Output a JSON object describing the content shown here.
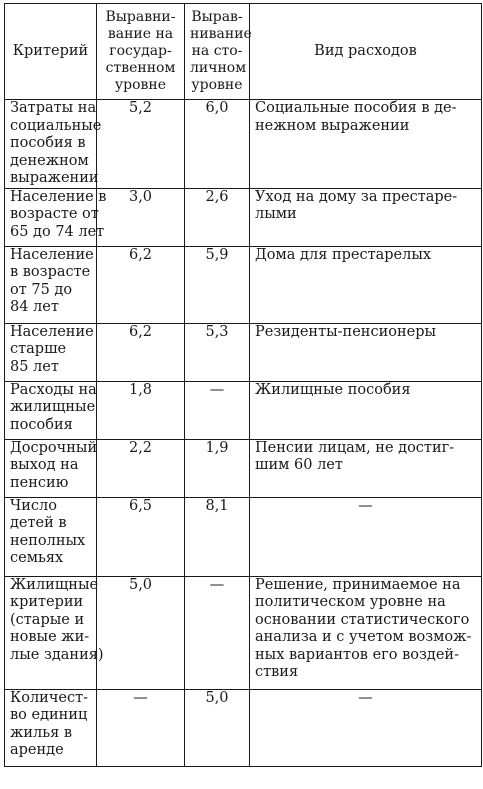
{
  "table": {
    "headers": {
      "criterion": "Критерий",
      "state_level": [
        "Выравни-",
        "вание на",
        "государ-",
        "ственном",
        "уровне"
      ],
      "capital_level": [
        "Вырав-",
        "нивание",
        "на сто-",
        "личном",
        "уровне"
      ],
      "expense_type": "Вид расходов"
    },
    "rows": [
      {
        "criterion": [
          "Затраты на",
          "социальные",
          "пособия в",
          "денежном",
          "выражении"
        ],
        "state": "5,2",
        "capital": "6,0",
        "expense": [
          "Социальные пособия в де-",
          "нежном выражении"
        ],
        "expense_centered": false,
        "height": 87
      },
      {
        "criterion": [
          "Население в",
          "возрасте от",
          "65 до 74 лет"
        ],
        "state": "3,0",
        "capital": "2,6",
        "expense": [
          "Уход на дому за престаре-",
          "лыми"
        ],
        "expense_centered": false,
        "height": 58
      },
      {
        "criterion": [
          "Население",
          "в возрасте",
          "от 75 до",
          "84 лет"
        ],
        "state": "6,2",
        "capital": "5,9",
        "expense": [
          "Дома для престарелых"
        ],
        "expense_centered": false,
        "height": 77
      },
      {
        "criterion": [
          "Население",
          "старше",
          "85 лет"
        ],
        "state": "6,2",
        "capital": "5,3",
        "expense": [
          "Резиденты-пенсионеры"
        ],
        "expense_centered": false,
        "height": 58
      },
      {
        "criterion": [
          "Расходы на",
          "жилищные",
          "пособия"
        ],
        "state": "1,8",
        "capital": "—",
        "expense": [
          "Жилищные пособия"
        ],
        "expense_centered": false,
        "height": 58
      },
      {
        "criterion": [
          "Досрочный",
          "выход на",
          "пенсию"
        ],
        "state": "2,2",
        "capital": "1,9",
        "expense": [
          "Пенсии лицам, не достиг-",
          "шим 60 лет"
        ],
        "expense_centered": false,
        "height": 58
      },
      {
        "criterion": [
          "Число",
          "детей в",
          "неполных",
          "семьях"
        ],
        "state": "6,5",
        "capital": "8,1",
        "expense": [
          "—"
        ],
        "expense_centered": true,
        "height": 79
      },
      {
        "criterion": [
          "Жилищные",
          "критерии",
          "(старые и",
          "новые жи-",
          "лые здания)"
        ],
        "state": "5,0",
        "capital": "—",
        "expense": [
          "Решение, принимаемое на",
          "политическом уровне на",
          "основании статистического",
          "анализа и с учетом возмож-",
          "ных вариантов его воздей-",
          "ствия"
        ],
        "expense_centered": false,
        "height": 113
      },
      {
        "criterion": [
          "Количест-",
          "во единиц",
          "жилья в",
          "аренде"
        ],
        "state": "—",
        "capital": "5,0",
        "expense": [
          "—"
        ],
        "expense_centered": true,
        "height": 77
      }
    ]
  }
}
